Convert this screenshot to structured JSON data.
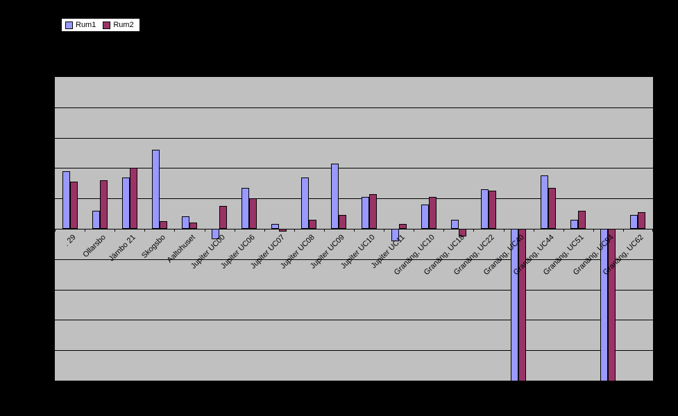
{
  "chart_data": {
    "type": "bar",
    "title": "",
    "xlabel": "",
    "ylabel": "",
    "ylim": [
      -5,
      5
    ],
    "gridline_step": 1,
    "grid": true,
    "legend_position": "top-left",
    "plot_bg": "#c0c0c0",
    "page_bg": "#000000",
    "categories": [
      ". 29",
      "Ollarsbo",
      "Järnbo 21",
      "Skogsbo",
      "Aaltohuset",
      "Jupiter UC00",
      "Jupiter UC06",
      "Jupiter UC07",
      "Jupiter UC08",
      "Jupiter UC09",
      "Jupiter UC10",
      "Jupiter UC11",
      "Granäng, UC10",
      "Granäng, UC18",
      "Granäng, UC22",
      "Granäng, UC40",
      "Granäng, UC44",
      "Granäng, UC51",
      "Granäng, UC54",
      "Granäng, UC62"
    ],
    "series": [
      {
        "name": "Rum1",
        "color": "#9999ff",
        "values": [
          1.9,
          0.6,
          1.7,
          2.6,
          0.4,
          -0.35,
          1.35,
          0.15,
          1.7,
          2.15,
          1.05,
          -0.4,
          0.8,
          0.3,
          1.3,
          -5.2,
          1.75,
          0.3,
          -5.2,
          0.45
        ]
      },
      {
        "name": "Rum2",
        "color": "#993366",
        "values": [
          1.55,
          1.6,
          2.0,
          0.25,
          0.2,
          0.75,
          1.0,
          -0.1,
          0.3,
          0.45,
          1.15,
          0.15,
          1.05,
          -0.25,
          1.25,
          -5.2,
          1.35,
          0.6,
          -5.2,
          0.55
        ]
      }
    ]
  }
}
